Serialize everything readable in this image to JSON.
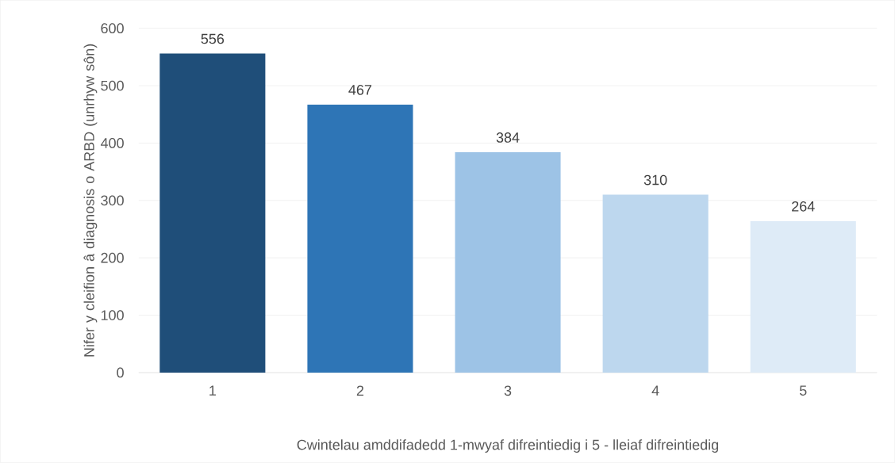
{
  "chart_data": {
    "type": "bar",
    "xlabel": "Cwintelau amddifadedd 1-mwyaf difreintiedig i 5 - lleiaf difreintiedig",
    "ylabel": "Nifer y cleifion â diagnosis o ARBD (unrhyw sôn)",
    "categories": [
      "1",
      "2",
      "3",
      "4",
      "5"
    ],
    "values": [
      556,
      467,
      384,
      310,
      264
    ],
    "colors": [
      "#1f4e79",
      "#2e75b6",
      "#9dc3e6",
      "#bdd7ee",
      "#deebf7"
    ],
    "ylim": [
      0,
      600
    ],
    "yticks": [
      0,
      100,
      200,
      300,
      400,
      500,
      600
    ],
    "grid": "y",
    "data_labels": true
  }
}
